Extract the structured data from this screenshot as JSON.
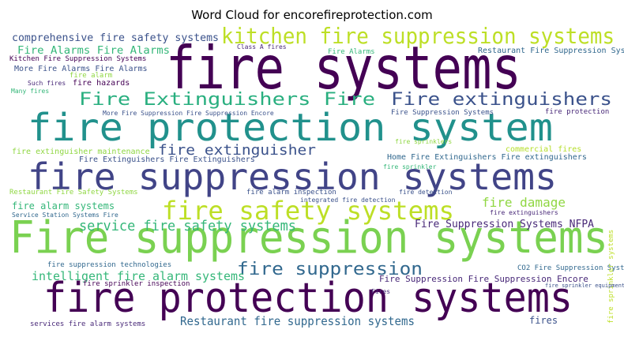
{
  "chart_data": {
    "type": "wordcloud",
    "title": "Word Cloud for encorefireprotection.com",
    "words": [
      "fire systems",
      "fire protection system",
      "fire suppression systems",
      "Fire suppression systems",
      "fire protection systems",
      "kitchen fire suppression systems",
      "fire safety systems",
      "Fire Extinguishers Fire",
      "Fire extinguishers",
      "fire extinguisher",
      "fire suppression",
      "service fire safety systems",
      "intelligent fire alarm systems",
      "Restaurant fire suppression systems",
      "comprehensive fire safety systems",
      "Fire Alarms Fire Alarms",
      "Kitchen Fire Suppression Systems",
      "More Fire Alarms Fire Alarms",
      "fire alarm",
      "fire hazards",
      "Restaurant Fire Suppression Systems",
      "Fire Alarms",
      "fire protection",
      "Fire Suppression Systems",
      "fire damage",
      "Fire Suppression Systems NFPA",
      "Fire Suppression Fire Suppression Encore",
      "CO2 Fire Suppression Systems",
      "commercial fires",
      "Home Fire Extinguishers Fire extinguishers",
      "Fire Extinguishers Fire Extinguishers",
      "fire extinguisher maintenance",
      "Restaurant Fire Safety Systems",
      "fire alarm systems",
      "fire alarm inspection",
      "fire detection",
      "fire extinguishers",
      "fires",
      "fire suppression technologies",
      "fire sprinkler inspection",
      "services fire alarm systems",
      "More Fire Suppression Fire Suppression Encore",
      "fire sprinkler systems",
      "integrated fire detection",
      "Class A fires",
      "Service Station Systems Fire",
      "fire sprinkler",
      "fire sprinklers",
      "Fires",
      "fire sprinkler equipment",
      "Such fires",
      "Many fires"
    ],
    "weights": [
      75,
      48,
      46,
      56,
      52,
      28,
      32,
      22,
      22,
      18,
      22,
      18,
      15,
      15,
      13,
      13,
      9,
      10,
      9,
      10,
      10,
      9,
      9,
      9,
      16,
      13,
      11,
      9,
      10,
      10,
      10,
      10,
      9,
      12,
      9,
      8,
      8,
      12,
      9,
      9,
      9,
      8,
      9,
      8,
      8,
      8,
      8,
      8,
      8,
      7,
      8,
      8
    ],
    "colors": [
      "#440154",
      "#21918c",
      "#414487",
      "#7ad151",
      "#440154",
      "#bddf26",
      "#bddf26",
      "#29af7f",
      "#3b528b",
      "#3b528b",
      "#31688e",
      "#35b779",
      "#35b779",
      "#31688e",
      "#3b528b",
      "#35b779",
      "#440154",
      "#3b528b",
      "#90d743",
      "#440154",
      "#31688e",
      "#35b779",
      "#482878",
      "#3b528b",
      "#90d743",
      "#482878",
      "#482878",
      "#31688e",
      "#b5de2b",
      "#31688e",
      "#3b528b",
      "#90d743",
      "#90d743",
      "#35b779",
      "#3b528b",
      "#3b528b",
      "#482878",
      "#3b528b",
      "#31688e",
      "#440154",
      "#482878",
      "#3b528b",
      "#bddf26",
      "#3b528b",
      "#482878",
      "#31688e",
      "#35b779",
      "#90d743",
      "#482878",
      "#3b528b",
      "#482878",
      "#35b779"
    ]
  }
}
